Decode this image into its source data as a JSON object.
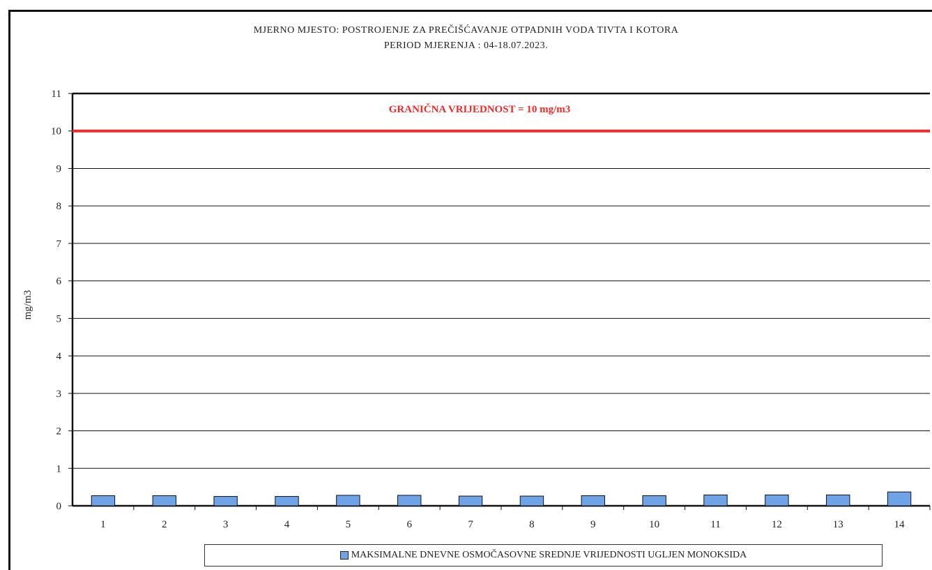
{
  "header": {
    "title_line1": "MJERNO MJESTO: POSTROJENJE ZA PREČIŠĆAVANJE OTPADNIH VODA TIVTA I KOTORA",
    "title_line2": "PERIOD MJERENJA : 04-18.07.2023."
  },
  "chart_data": {
    "type": "bar",
    "categories": [
      "1",
      "2",
      "3",
      "4",
      "5",
      "6",
      "7",
      "8",
      "9",
      "10",
      "11",
      "12",
      "13",
      "14"
    ],
    "series": [
      {
        "name": "MAKSIMALNE DNEVNE OSMOČASOVNE SREDNJE VRIJEDNOSTI UGLJEN MONOKSIDA",
        "values": [
          0.27,
          0.27,
          0.25,
          0.25,
          0.28,
          0.28,
          0.26,
          0.26,
          0.27,
          0.27,
          0.29,
          0.29,
          0.29,
          0.37
        ],
        "color": "#6fa3e8"
      }
    ],
    "ylabel": "mg/m3",
    "xlabel": "",
    "ylim": [
      0,
      11
    ],
    "yticks": [
      0,
      1,
      2,
      3,
      4,
      5,
      6,
      7,
      8,
      9,
      10,
      11
    ],
    "grid": true,
    "legend_position": "bottom",
    "limit_line": {
      "value": 10,
      "label": "GRANIČNA VRIJEDNOST = 10 mg/m3",
      "color": "#ee2a2a"
    }
  }
}
